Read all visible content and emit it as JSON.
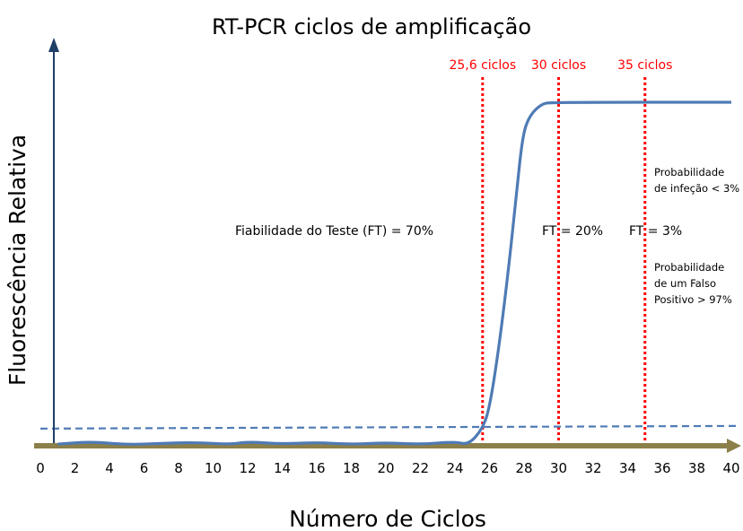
{
  "chart_data": {
    "type": "line",
    "title": "RT-PCR ciclos de amplificação",
    "xlabel": "Número de Ciclos",
    "ylabel": "Fluorescência Relativa",
    "xlim": [
      0,
      40
    ],
    "ylim": [
      0,
      1
    ],
    "grid": false,
    "xticks": [
      0,
      2,
      4,
      6,
      8,
      10,
      12,
      14,
      16,
      18,
      20,
      22,
      24,
      26,
      28,
      30,
      32,
      34,
      36,
      38,
      40
    ],
    "series": [
      {
        "color": "#4f7bb5",
        "points": [
          [
            1,
            0.005
          ],
          [
            3,
            0.012
          ],
          [
            5,
            0.003
          ],
          [
            7,
            0.007
          ],
          [
            9,
            0.01
          ],
          [
            11,
            0.004
          ],
          [
            12,
            0.012
          ],
          [
            14,
            0.005
          ],
          [
            16,
            0.01
          ],
          [
            18,
            0.004
          ],
          [
            20,
            0.009
          ],
          [
            22,
            0.004
          ],
          [
            24,
            0.012
          ],
          [
            24.8,
            0.003
          ],
          [
            25.6,
            0.05
          ],
          [
            26,
            0.11
          ],
          [
            26.5,
            0.27
          ],
          [
            27,
            0.47
          ],
          [
            27.5,
            0.7
          ],
          [
            27.9,
            0.9
          ],
          [
            28.3,
            0.96
          ],
          [
            29,
            0.995
          ],
          [
            29.6,
            1
          ],
          [
            40,
            1
          ]
        ]
      }
    ],
    "threshold": {
      "value": 0.05,
      "color": "#4f7bb5"
    },
    "vlines": [
      {
        "x": 25.6,
        "label": "25,6 ciclos",
        "color": "#ff0000"
      },
      {
        "x": 30,
        "label": "30 ciclos",
        "color": "#ff0000"
      },
      {
        "x": 35,
        "label": "35 ciclos",
        "color": "#ff0000"
      }
    ],
    "annotations": {
      "ft70": "Fiabilidade do Teste (FT) = 70%",
      "ft20": "FT = 20%",
      "ft3": "FT = 3%",
      "prob_infecao": [
        "Probabilidade",
        "de infeção < 3%"
      ],
      "prob_falso": [
        "Probabilidade",
        "de um Falso",
        "Positivo > 97%"
      ]
    },
    "axis_color_x": "#8b7f4a",
    "axis_color_y": "#1f3f66"
  }
}
